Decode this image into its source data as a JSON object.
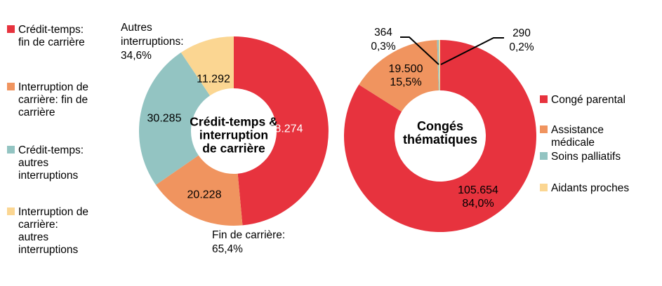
{
  "palette": {
    "red": "#E7333E",
    "orange": "#F0945F",
    "teal": "#93C4C2",
    "yellow": "#FBD692"
  },
  "chart_data": [
    {
      "type": "donut",
      "title": "Crédit-temps &\ninterruption\nde carrière",
      "segments": [
        {
          "name": "Crédit-temps: fin de carrière",
          "value": 58274,
          "label": "58.274",
          "color": "#E7333E"
        },
        {
          "name": "Interruption de carrière: fin de carrière",
          "value": 20228,
          "label": "20.228",
          "color": "#F0945F"
        },
        {
          "name": "Crédit-temps: autres interruptions",
          "value": 30285,
          "label": "30.285",
          "color": "#93C4C2"
        },
        {
          "name": "Interruption de carrière: autres interruptions",
          "value": 11292,
          "label": "11.292",
          "color": "#FBD692"
        }
      ],
      "annotations": {
        "autres": "Autres\ninterruptions:\n34,6%",
        "fin": "Fin de carrière:\n65,4%"
      },
      "legend": [
        {
          "label": "Crédit-temps:\nfin de carrière",
          "color": "#E7333E"
        },
        {
          "label": "Interruption de\ncarrière: fin de\ncarrière",
          "color": "#F0945F"
        },
        {
          "label": "Crédit-temps:\nautres\ninterruptions",
          "color": "#93C4C2"
        },
        {
          "label": "Interruption de\ncarrière:\nautres\ninterruptions",
          "color": "#FBD692"
        }
      ]
    },
    {
      "type": "donut",
      "title": "Congés\nthématiques",
      "segments": [
        {
          "name": "Congé parental",
          "value": 105654,
          "label": "105.654\n84,0%",
          "color": "#E7333E"
        },
        {
          "name": "Assistance médicale",
          "value": 19500,
          "label": "19.500\n15,5%",
          "color": "#F0945F"
        },
        {
          "name": "Soins palliatifs",
          "value": 364,
          "label": "364\n0,3%",
          "color": "#93C4C2"
        },
        {
          "name": "Aidants proches",
          "value": 290,
          "label": "290\n0,2%",
          "color": "#FBD692"
        }
      ],
      "legend": [
        {
          "label": "Congé parental",
          "color": "#E7333E"
        },
        {
          "label": "Assistance\nmédicale",
          "color": "#F0945F"
        },
        {
          "label": "Soins palliatifs",
          "color": "#93C4C2"
        },
        {
          "label": "Aidants proches",
          "color": "#FBD692"
        }
      ]
    }
  ]
}
